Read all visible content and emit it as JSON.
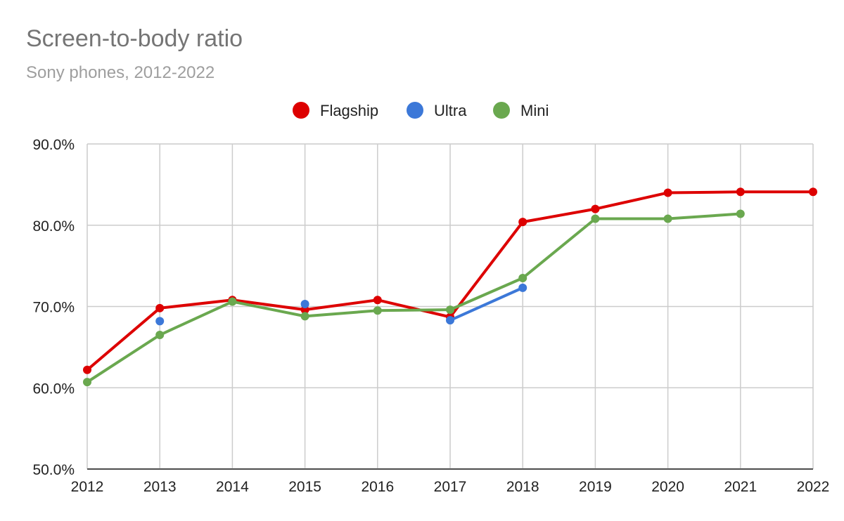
{
  "chart_data": {
    "type": "line",
    "title": "Screen-to-body ratio",
    "subtitle": "Sony phones, 2012-2022",
    "x": [
      "2012",
      "2013",
      "2014",
      "2015",
      "2016",
      "2017",
      "2018",
      "2019",
      "2020",
      "2021",
      "2022"
    ],
    "ylim": [
      50,
      90
    ],
    "yticks": [
      "50.0%",
      "60.0%",
      "70.0%",
      "80.0%",
      "90.0%"
    ],
    "grid": true,
    "legend": "top",
    "series": [
      {
        "name": "Flagship",
        "color": "#dd0000",
        "values": [
          62.2,
          69.8,
          70.8,
          69.6,
          70.8,
          68.7,
          80.4,
          82.0,
          84.0,
          84.1,
          84.1
        ]
      },
      {
        "name": "Ultra",
        "color": "#3c78d8",
        "values": [
          null,
          68.2,
          null,
          70.3,
          null,
          68.3,
          72.3,
          null,
          null,
          null,
          null
        ]
      },
      {
        "name": "Mini",
        "color": "#6aa84f",
        "values": [
          60.7,
          66.5,
          70.6,
          68.8,
          69.5,
          69.6,
          73.5,
          80.8,
          80.8,
          81.4,
          null
        ]
      }
    ]
  }
}
